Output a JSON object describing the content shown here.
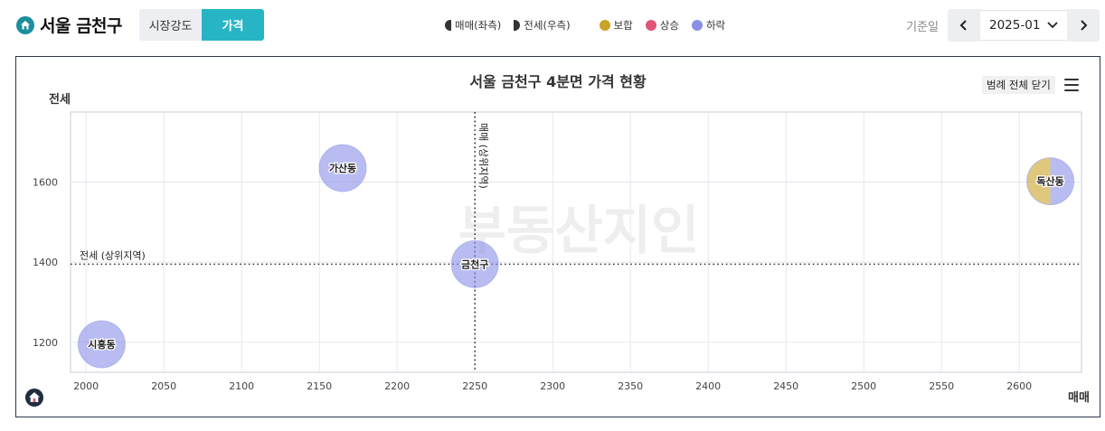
{
  "header": {
    "title": "서울 금천구",
    "tabs": [
      {
        "label": "시장강도",
        "active": false
      },
      {
        "label": "가격",
        "active": true
      }
    ],
    "legend": {
      "sale": "매매(좌측)",
      "jeonse": "전세(우측)",
      "flat": "보합",
      "rise": "상승",
      "fall": "하락"
    },
    "date_label": "기준일",
    "date_value": "2025-01"
  },
  "colors": {
    "accent": "#27b5c6",
    "brand": "#1b8fa0",
    "flat": "#c9a227",
    "rise": "#e05578",
    "fall": "#8b8fe6"
  },
  "chart_data": {
    "type": "scatter",
    "title": "서울 금천구 4분면 가격 현황",
    "xlabel": "매매",
    "ylabel": "전세",
    "xlim": [
      1990,
      2640
    ],
    "ylim": [
      1125,
      1775
    ],
    "xticks": [
      2000,
      2050,
      2100,
      2150,
      2200,
      2250,
      2300,
      2350,
      2400,
      2450,
      2500,
      2550,
      2600
    ],
    "yticks": [
      1200,
      1400,
      1600
    ],
    "reference_lines": [
      {
        "axis": "x",
        "value": 2250,
        "label": "매매 (상위지역)"
      },
      {
        "axis": "y",
        "value": 1395,
        "label": "전세 (상위지역)"
      }
    ],
    "legend_toggle": "범례 전체 닫기",
    "watermark": "부동산지인",
    "points": [
      {
        "name": "가산동",
        "x": 2165,
        "y": 1635,
        "sale": "fall",
        "jeonse": "fall"
      },
      {
        "name": "독산동",
        "x": 2620,
        "y": 1602,
        "sale": "flat",
        "jeonse": "fall"
      },
      {
        "name": "금천구",
        "x": 2250,
        "y": 1395,
        "sale": "fall",
        "jeonse": "fall"
      },
      {
        "name": "시흥동",
        "x": 2010,
        "y": 1195,
        "sale": "fall",
        "jeonse": "fall"
      }
    ]
  }
}
